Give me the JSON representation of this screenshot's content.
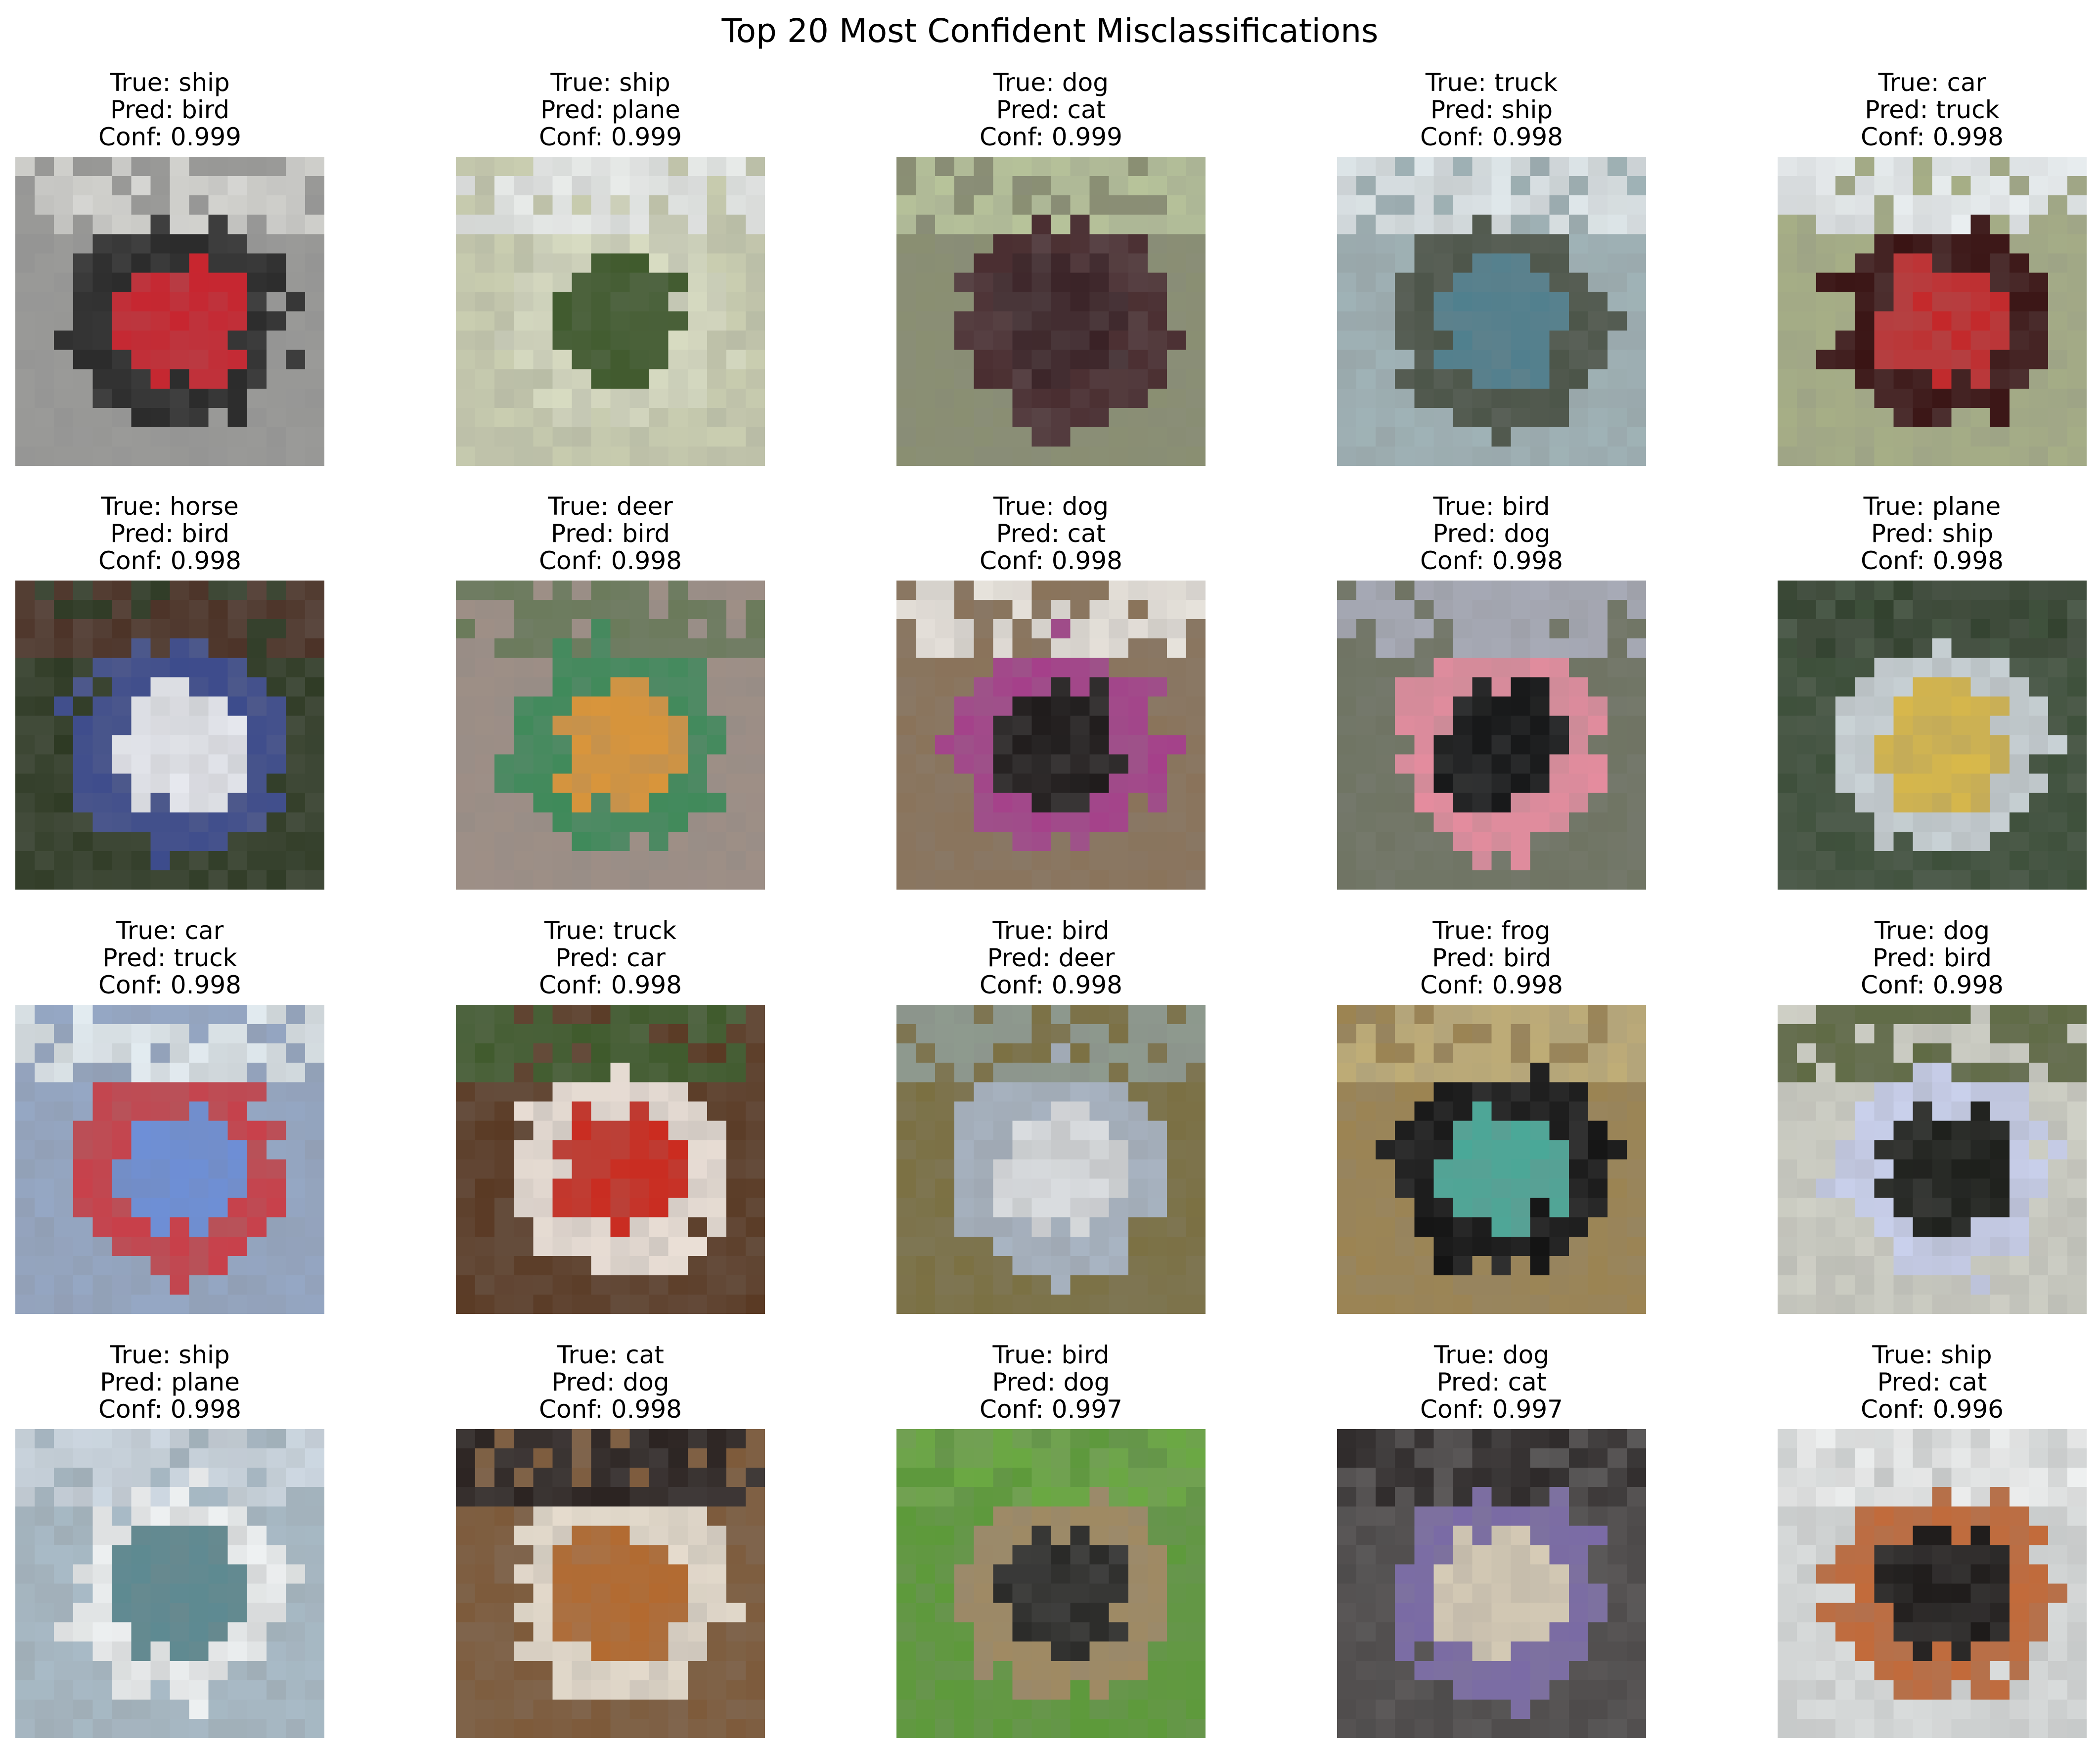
{
  "title": "Top 20 Most Confident Misclassifications",
  "samples": [
    {
      "true_label": "True: ship",
      "pred_label": "Pred: bird",
      "conf_label": "Conf: 0.999",
      "bg": "#9a9a98",
      "accent": "#c8242e",
      "mid": "#2a2a2a",
      "top": "#d6d6d2"
    },
    {
      "true_label": "True: ship",
      "pred_label": "Pred: plane",
      "conf_label": "Conf: 0.999",
      "bg": "#c9cdb0",
      "accent": "#3f5a2c",
      "mid": "#d8dcc2",
      "top": "#e9ecea"
    },
    {
      "true_label": "True: dog",
      "pred_label": "Pred: cat",
      "conf_label": "Conf: 0.999",
      "bg": "#8a8f72",
      "accent": "#3a2226",
      "mid": "#4a2e31",
      "top": "#b7c39a"
    },
    {
      "true_label": "True: truck",
      "pred_label": "Pred: ship",
      "conf_label": "Conf: 0.998",
      "bg": "#9fb2b6",
      "accent": "#4f7f8e",
      "mid": "#4c5549",
      "top": "#dfe7ea"
    },
    {
      "true_label": "True: car",
      "pred_label": "Pred: truck",
      "conf_label": "Conf: 0.998",
      "bg": "#a6ae86",
      "accent": "#c4282a",
      "mid": "#3a1414",
      "top": "#e9eef0"
    },
    {
      "true_label": "True: horse",
      "pred_label": "Pred: bird",
      "conf_label": "Conf: 0.998",
      "bg": "#2e3a24",
      "accent": "#e6e8ee",
      "mid": "#3b4a8c",
      "top": "#4b3226"
    },
    {
      "true_label": "True: deer",
      "pred_label": "Pred: bird",
      "conf_label": "Conf: 0.998",
      "bg": "#9e8f86",
      "accent": "#d9953a",
      "mid": "#3f8a5a",
      "top": "#6a7a5a"
    },
    {
      "true_label": "True: dog",
      "pred_label": "Pred: cat",
      "conf_label": "Conf: 0.998",
      "bg": "#8a735a",
      "accent": "#1e1a1a",
      "mid": "#a5408a",
      "top": "#e8e3dc"
    },
    {
      "true_label": "True: bird",
      "pred_label": "Pred: dog",
      "conf_label": "Conf: 0.998",
      "bg": "#6f7463",
      "accent": "#151617",
      "mid": "#e48c9e",
      "top": "#a7aab6"
    },
    {
      "true_label": "True: plane",
      "pred_label": "Pred: ship",
      "conf_label": "Conf: 0.998",
      "bg": "#3d4f3a",
      "accent": "#d8b84a",
      "mid": "#c9d2d6",
      "top": "#33422f"
    },
    {
      "true_label": "True: car",
      "pred_label": "Pred: truck",
      "conf_label": "Conf: 0.998",
      "bg": "#95a7c4",
      "accent": "#6d8fd8",
      "mid": "#c8404a",
      "top": "#e2ebf0"
    },
    {
      "true_label": "True: truck",
      "pred_label": "Pred: car",
      "conf_label": "Conf: 0.998",
      "bg": "#5a3a24",
      "accent": "#cc2a1e",
      "mid": "#eadfd6",
      "top": "#3f5a2c"
    },
    {
      "true_label": "True: bird",
      "pred_label": "Pred: deer",
      "conf_label": "Conf: 0.998",
      "bg": "#7b7042",
      "accent": "#dadde0",
      "mid": "#a8b4c2",
      "top": "#8e9a8e"
    },
    {
      "true_label": "True: frog",
      "pred_label": "Pred: bird",
      "conf_label": "Conf: 0.998",
      "bg": "#9c8452",
      "accent": "#4aa898",
      "mid": "#141414",
      "top": "#c0ad76"
    },
    {
      "true_label": "True: dog",
      "pred_label": "Pred: bird",
      "conf_label": "Conf: 0.998",
      "bg": "#cfd0c6",
      "accent": "#1c1e1a",
      "mid": "#c9d0ec",
      "top": "#5f6a44"
    },
    {
      "true_label": "True: ship",
      "pred_label": "Pred: plane",
      "conf_label": "Conf: 0.998",
      "bg": "#a8bac6",
      "accent": "#5d8a92",
      "mid": "#eef1f2",
      "top": "#cdd8e2"
    },
    {
      "true_label": "True: cat",
      "pred_label": "Pred: dog",
      "conf_label": "Conf: 0.998",
      "bg": "#7d5a3a",
      "accent": "#b36a30",
      "mid": "#e6dccd",
      "top": "#2a2220"
    },
    {
      "true_label": "True: bird",
      "pred_label": "Pred: dog",
      "conf_label": "Conf: 0.997",
      "bg": "#5d9a3a",
      "accent": "#2a2a28",
      "mid": "#a08a62",
      "top": "#6aa842"
    },
    {
      "true_label": "True: dog",
      "pred_label": "Pred: cat",
      "conf_label": "Conf: 0.997",
      "bg": "#4d4a4a",
      "accent": "#d6cbb6",
      "mid": "#7a6aa6",
      "top": "#2e2a2a"
    },
    {
      "true_label": "True: ship",
      "pred_label": "Pred: cat",
      "conf_label": "Conf: 0.996",
      "bg": "#d9dcdc",
      "accent": "#1e1b1a",
      "mid": "#c26a3a",
      "top": "#eef0f0"
    }
  ]
}
